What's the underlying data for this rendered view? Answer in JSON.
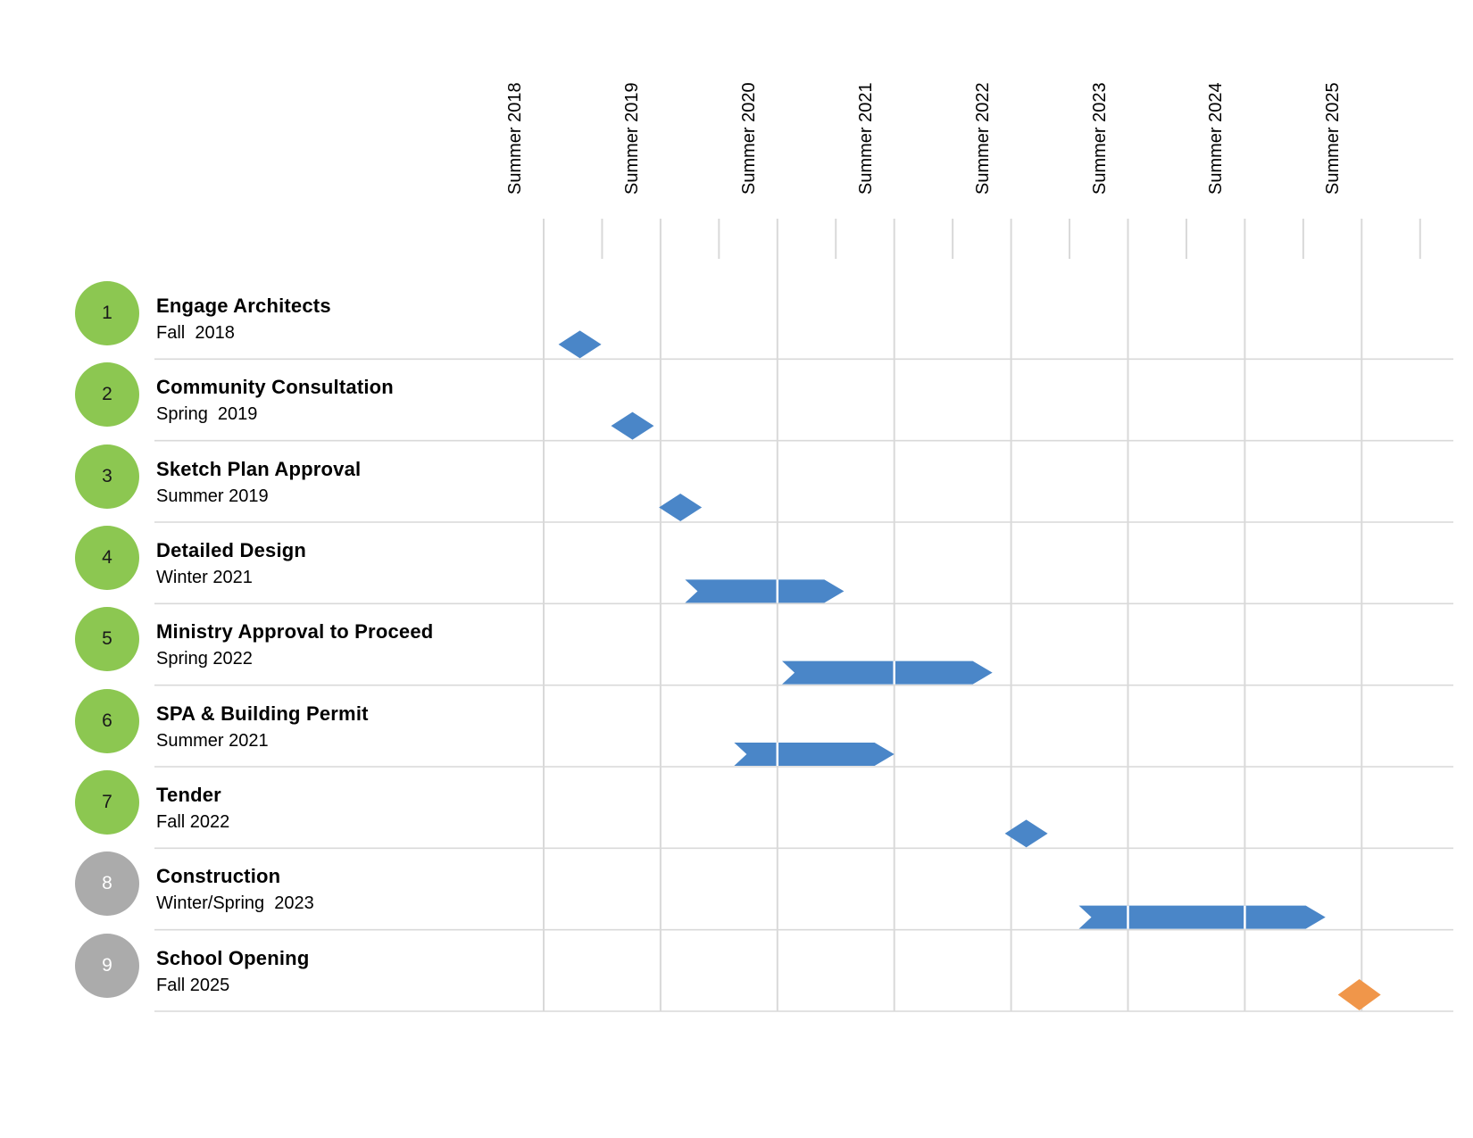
{
  "page": {
    "background": "#FFFFFF"
  },
  "chart_data": {
    "type": "gantt",
    "x_axis": {
      "tick_labels": [
        "Summer 2018",
        "Summer 2019",
        "Summer 2020",
        "Summer 2021",
        "Summer 2022",
        "Summer 2023",
        "Summer 2024",
        "Summer 2025"
      ],
      "minor_ticks_per_year": 2,
      "grid": true,
      "label_rotation_degrees": -90
    },
    "tasks": [
      {
        "number": "1",
        "name": "Engage Architects",
        "date_label": "Fall  2018",
        "circle_color": "green",
        "marker": "milestone",
        "marker_color": "blue",
        "time": 2018.81
      },
      {
        "number": "2",
        "name": "Community Consultation",
        "date_label": "Spring  2019",
        "circle_color": "green",
        "marker": "milestone",
        "marker_color": "blue",
        "time": 2019.26
      },
      {
        "number": "3",
        "name": "Sketch Plan Approval",
        "date_label": "Summer 2019",
        "circle_color": "green",
        "marker": "milestone",
        "marker_color": "blue",
        "time": 2019.67
      },
      {
        "number": "4",
        "name": "Detailed Design",
        "date_label": "Winter 2021",
        "circle_color": "green",
        "marker": "bar",
        "marker_color": "blue",
        "start": 2019.71,
        "end": 2021.07
      },
      {
        "number": "5",
        "name": "Ministry Approval to Proceed",
        "date_label": "Spring 2022",
        "circle_color": "green",
        "marker": "bar",
        "marker_color": "blue",
        "start": 2020.54,
        "end": 2022.34
      },
      {
        "number": "6",
        "name": "SPA & Building Permit",
        "date_label": "Summer 2021",
        "circle_color": "green",
        "marker": "bar",
        "marker_color": "blue",
        "start": 2020.13,
        "end": 2021.5
      },
      {
        "number": "7",
        "name": "Tender",
        "date_label": "Fall 2022",
        "circle_color": "green",
        "marker": "milestone",
        "marker_color": "blue",
        "time": 2022.63
      },
      {
        "number": "8",
        "name": "Construction",
        "date_label": "Winter/Spring  2023",
        "circle_color": "gray",
        "marker": "bar",
        "marker_color": "blue",
        "start": 2023.08,
        "end": 2025.19
      },
      {
        "number": "9",
        "name": "School Opening",
        "date_label": "Fall 2025",
        "circle_color": "gray",
        "marker": "milestone",
        "marker_color": "orange",
        "time": 2025.48
      }
    ],
    "colors": {
      "bar_blue": "#4A86C8",
      "milestone_orange": "#F0964A",
      "circle_green": "#8CC751",
      "circle_gray": "#ABABAB",
      "gridline": "#D9D9D9",
      "bar_segment_separator": "#FFFFFF",
      "text": "#000000"
    }
  }
}
